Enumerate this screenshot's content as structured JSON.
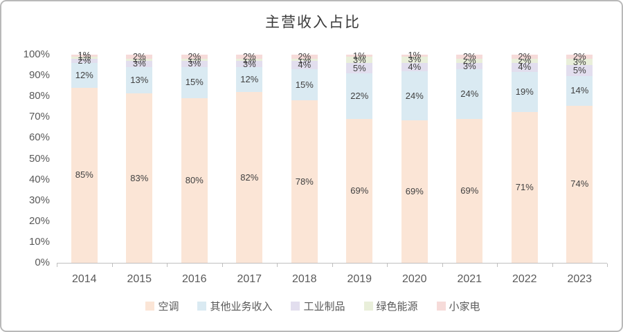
{
  "window": {
    "background": "#ffffff",
    "border_color": "#b9b9b9"
  },
  "chart_data": {
    "type": "bar",
    "stacked": true,
    "percent_stacked": true,
    "title": "主营收入占比",
    "categories": [
      "2014",
      "2015",
      "2016",
      "2017",
      "2018",
      "2019",
      "2020",
      "2021",
      "2022",
      "2023"
    ],
    "series": [
      {
        "name": "空调",
        "color": "#fbe5d6",
        "values": [
          85,
          83,
          80,
          82,
          78,
          69,
          69,
          69,
          71,
          74
        ]
      },
      {
        "name": "其他业务收入",
        "color": "#daeaf2",
        "values": [
          12,
          13,
          15,
          12,
          15,
          22,
          24,
          24,
          19,
          14
        ]
      },
      {
        "name": "工业制品",
        "color": "#e2deee",
        "values": [
          2,
          3,
          3,
          3,
          4,
          5,
          4,
          3,
          4,
          5
        ]
      },
      {
        "name": "绿色能源",
        "color": "#e9efda",
        "values": [
          1,
          1,
          1,
          1,
          1,
          3,
          3,
          2,
          2,
          3
        ]
      },
      {
        "name": "小家电",
        "color": "#f6dbd9",
        "values": [
          1,
          2,
          2,
          2,
          2,
          1,
          1,
          2,
          2,
          2
        ]
      }
    ],
    "data_label_suffix": "%",
    "y_axis": {
      "min": 0,
      "max": 100,
      "tick_step": 10,
      "tick_labels": [
        "0%",
        "10%",
        "20%",
        "30%",
        "40%",
        "50%",
        "60%",
        "70%",
        "80%",
        "90%",
        "100%"
      ]
    },
    "grid": false,
    "legend_position": "bottom",
    "colors": {
      "axis_line": "#bfbfbf",
      "axis_text": "#595959",
      "data_label_text": "#404040",
      "title_text": "#3a3a3a"
    }
  }
}
